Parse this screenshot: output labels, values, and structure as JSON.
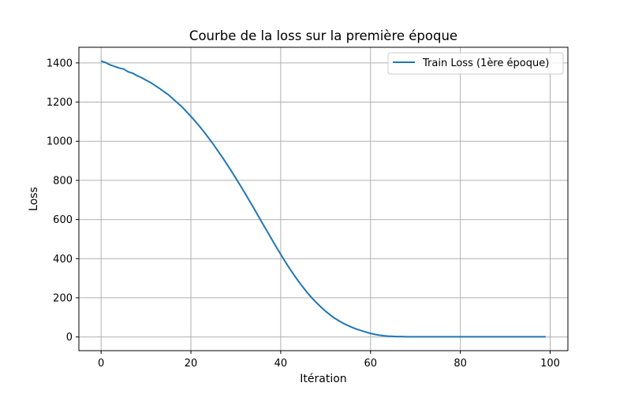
{
  "chart_data": {
    "type": "line",
    "title": "Courbe de la loss sur la première époque",
    "xlabel": "Itération",
    "ylabel": "Loss",
    "xlim": [
      -4.95,
      103.95
    ],
    "ylim": [
      -70,
      1480
    ],
    "xticks": [
      0,
      20,
      40,
      60,
      80,
      100
    ],
    "yticks": [
      0,
      200,
      400,
      600,
      800,
      1000,
      1200,
      1400
    ],
    "grid": true,
    "legend_position": "top-right",
    "series": [
      {
        "name": "Train Loss (1ère époque)",
        "color": "#1f77b4",
        "x": [
          0,
          1,
          2,
          3,
          4,
          5,
          6,
          7,
          8,
          9,
          10,
          11,
          12,
          13,
          14,
          15,
          16,
          17,
          18,
          19,
          20,
          21,
          22,
          23,
          24,
          25,
          26,
          27,
          28,
          29,
          30,
          31,
          32,
          33,
          34,
          35,
          36,
          37,
          38,
          39,
          40,
          41,
          42,
          43,
          44,
          45,
          46,
          47,
          48,
          49,
          50,
          51,
          52,
          53,
          54,
          55,
          56,
          57,
          58,
          59,
          60,
          61,
          62,
          63,
          64,
          65,
          66,
          67,
          68,
          69,
          70,
          71,
          72,
          73,
          74,
          75,
          76,
          77,
          78,
          79,
          80,
          81,
          82,
          83,
          84,
          85,
          86,
          87,
          88,
          89,
          90,
          91,
          92,
          93,
          94,
          95,
          96,
          97,
          98,
          99
        ],
        "y": [
          1410,
          1402,
          1390,
          1382,
          1374,
          1369,
          1355,
          1348,
          1335,
          1325,
          1312,
          1300,
          1285,
          1270,
          1253,
          1237,
          1217,
          1196,
          1176,
          1151,
          1127,
          1101,
          1074,
          1045,
          1015,
          984,
          951,
          918,
          883,
          848,
          811,
          774,
          736,
          697,
          658,
          618,
          578,
          539,
          499,
          460,
          422,
          385,
          349,
          315,
          283,
          253,
          224,
          198,
          174,
          152,
          131,
          113,
          96,
          82,
          69,
          58,
          48,
          39,
          32,
          25,
          18,
          13,
          9,
          6,
          4,
          3,
          2,
          2,
          1,
          1,
          1,
          1,
          1,
          1,
          1,
          1,
          1,
          1,
          1,
          1,
          1,
          1,
          1,
          1,
          1,
          1,
          1,
          1,
          1,
          1,
          1,
          1,
          1,
          1,
          1,
          1,
          1,
          1,
          1,
          1
        ]
      }
    ]
  }
}
